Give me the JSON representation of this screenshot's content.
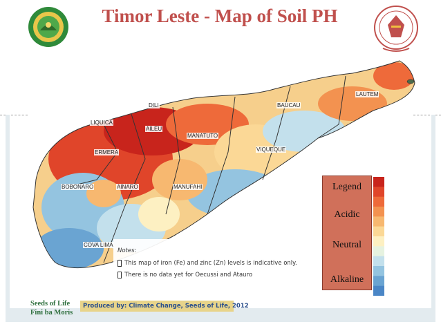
{
  "title": "Timor Leste - Map of Soil PH",
  "map": {
    "place_labels": [
      {
        "name": "DILI"
      },
      {
        "name": "LIQUICA"
      },
      {
        "name": "AILEU"
      },
      {
        "name": "ERMERA"
      },
      {
        "name": "MANATUTO"
      },
      {
        "name": "BAUCAU"
      },
      {
        "name": "VIQUEQUE"
      },
      {
        "name": "LAUTEM"
      },
      {
        "name": "BOBONARO"
      },
      {
        "name": "AINARO"
      },
      {
        "name": "MANUFAHI"
      },
      {
        "name": "COVA LIMA"
      }
    ]
  },
  "notes": {
    "heading": "Notes:",
    "items": [
      "This map of iron (Fe) and zinc (Zn) levels is indicative only.",
      "There is no data yet for Oecussi and Atauro"
    ]
  },
  "legend": {
    "title": "Legend",
    "acidic": "Acidic",
    "neutral": "Neutral",
    "alkaline": "Alkaline",
    "colors": [
      "#c8241c",
      "#e0452a",
      "#ee6a3a",
      "#f39250",
      "#f7b870",
      "#fbd896",
      "#fdf0c2",
      "#e6f2e0",
      "#c3e0ec",
      "#94c4e0",
      "#6aa4d2",
      "#4a86c6"
    ]
  },
  "footer": {
    "logo_line1": "Seeds of Life",
    "logo_line2": "Fini ba Moris",
    "produced_by": "Produced by:  Climate Change, Seeds of Life, 2012"
  }
}
